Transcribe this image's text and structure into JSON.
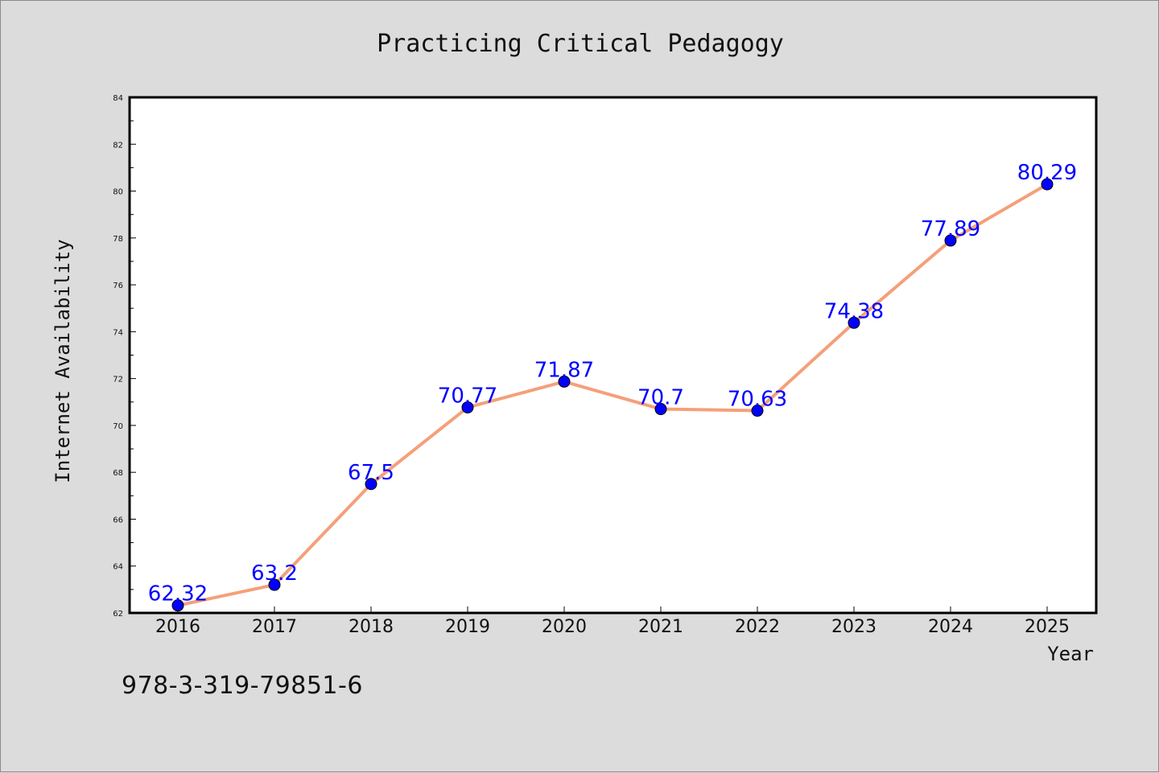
{
  "chart_data": {
    "type": "line",
    "title": "Practicing Critical Pedagogy",
    "xlabel": "Year",
    "ylabel": "Internet Availability",
    "categories": [
      "2016",
      "2017",
      "2018",
      "2019",
      "2020",
      "2021",
      "2022",
      "2023",
      "2024",
      "2025"
    ],
    "series": [
      {
        "values": [
          62.32,
          63.2,
          67.5,
          70.77,
          71.87,
          70.7,
          70.63,
          74.38,
          77.89,
          80.29
        ],
        "line_color": "#f4a07a",
        "marker_color": "#0000ff"
      }
    ],
    "ylim": [
      62,
      84
    ],
    "yticks": [
      62,
      64,
      66,
      68,
      70,
      72,
      74,
      76,
      78,
      80,
      82,
      84
    ],
    "grid": false,
    "data_labels": true,
    "label_color": "#0000ff"
  },
  "footer": {
    "isbn": "978-3-319-79851-6"
  }
}
